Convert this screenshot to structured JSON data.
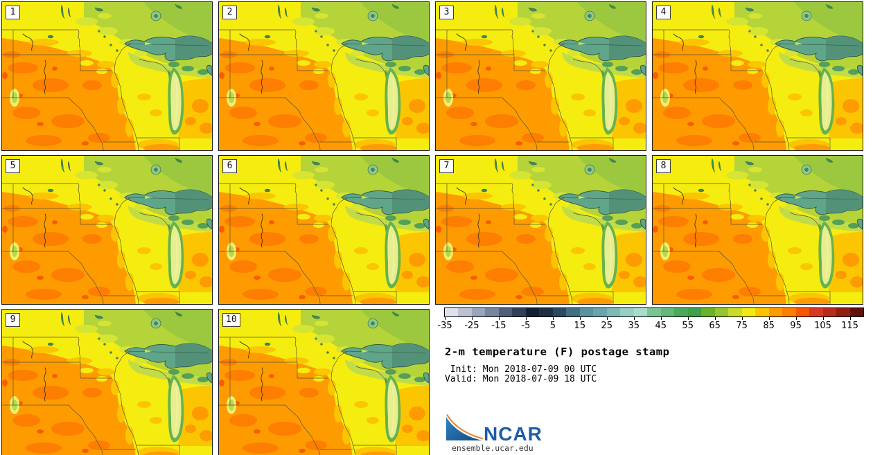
{
  "title_block": {
    "title": "2-m temperature (F) postage stamp",
    "init_line": " Init: Mon 2018-07-09 00 UTC",
    "valid_line": "Valid: Mon 2018-07-09 18 UTC"
  },
  "panels": {
    "labels": [
      "1",
      "2",
      "3",
      "4",
      "5",
      "6",
      "7",
      "8",
      "9",
      "10"
    ]
  },
  "colorbar": {
    "unit": "F",
    "min": -35,
    "max": 120,
    "step": 5,
    "tick_labels": [
      "-35",
      "-25",
      "-15",
      "-5",
      "5",
      "15",
      "25",
      "35",
      "45",
      "55",
      "65",
      "75",
      "85",
      "95",
      "105",
      "115"
    ],
    "segment_colors": [
      "#dfe2ec",
      "#bcc2d4",
      "#9aa4bb",
      "#78859f",
      "#515e79",
      "#333f58",
      "#131f33",
      "#1d3044",
      "#2a4962",
      "#437081",
      "#5a93a0",
      "#6aa5ab",
      "#7db9b6",
      "#97cfc4",
      "#a9ddcb",
      "#7cc494",
      "#65b87b",
      "#4aa95c",
      "#3f9f4b",
      "#6ab229",
      "#96c52f",
      "#c9dc2a",
      "#f3ea12",
      "#fbc501",
      "#fe9b01",
      "#fd7e01",
      "#f95601",
      "#d63822",
      "#b72b1b",
      "#8e1f10",
      "#5f1108"
    ]
  },
  "map": {
    "features": [
      "lake-superior",
      "lake-michigan",
      "green-bay",
      "state-borders",
      "missouri-river",
      "mississippi-river",
      "canadian-lakes",
      "black-hills"
    ],
    "colors": {
      "c_yellow": "#f5ec10",
      "c_orange": "#fe9b01",
      "c_dorange": "#fd7e01",
      "c_hot": "#f85c01",
      "c_yo": "#fcc501",
      "c_green": "#b4d43a",
      "c_green2": "#9bc83e",
      "c_ltgreen": "#c2dc48",
      "c_ygreen": "#d6e433",
      "c_ygreen2": "#b8d84a",
      "c_dkgreen": "#55a058",
      "c_pale": "#eef071",
      "lake_sup": "#5fa589",
      "lake_sup2": "#539179",
      "lake_outline": "#33523f",
      "mi_rim": "#66b24e",
      "mi_fill": "#e6ee8e",
      "mi_center": "#f2f0a0",
      "lakegreen": "#3f8a5a",
      "ringlake": "#8cc88c",
      "border_line": "#5a5530",
      "river": "#3d3a1e"
    }
  },
  "logo": {
    "name": "NCAR",
    "site": "ensemble.ucar.edu",
    "brand_blue": "#1d5ca8",
    "brand_orange": "#e8873a"
  }
}
